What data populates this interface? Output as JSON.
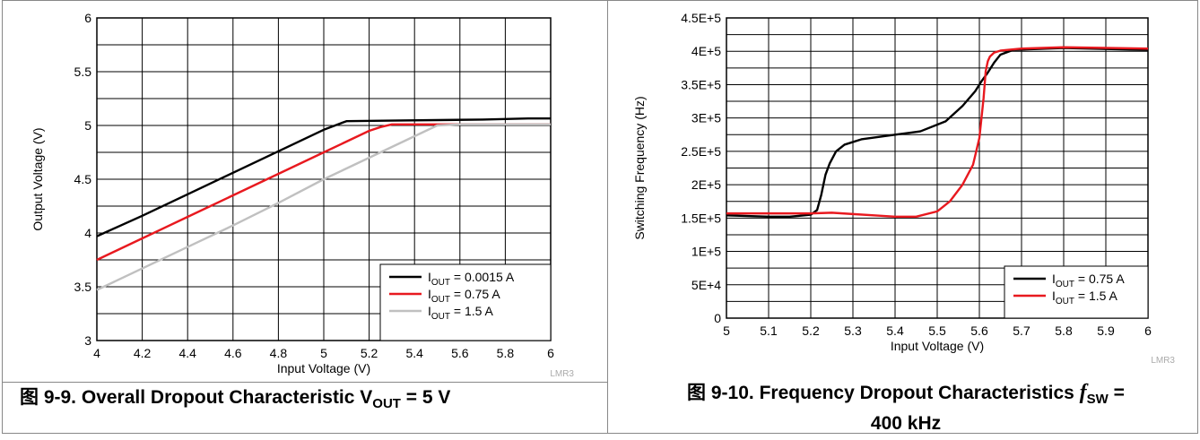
{
  "charts_meta": {
    "left_caption": {
      "prefix": "图 9-9. Overall Dropout Characteristic V",
      "sub": "OUT",
      "suffix": " = 5 V"
    },
    "right_caption": {
      "prefix": "图 9-10. Frequency Dropout Characteristics ",
      "italic": "f",
      "sub": "SW",
      "suffix": " =",
      "line2": "400 kHz"
    },
    "watermark": "LMR3"
  },
  "chart_data": [
    {
      "type": "line",
      "xlabel": "Input Voltage (V)",
      "ylabel": "Output Voltage (V)",
      "xlim": [
        4,
        6
      ],
      "ylim": [
        3,
        6
      ],
      "xticks": [
        "4",
        "4.2",
        "4.4",
        "4.6",
        "4.8",
        "5",
        "5.2",
        "5.4",
        "5.6",
        "5.8",
        "6"
      ],
      "yticks": [
        "3",
        "3.5",
        "4",
        "4.5",
        "5",
        "5.5",
        "6"
      ],
      "grid": true,
      "legend_position": "bottom-right",
      "series": [
        {
          "name": "I_OUT = 0.0015 A",
          "label_main": "I",
          "label_sub": "OUT",
          "label_rest": " = 0.0015 A",
          "color": "#000000",
          "x": [
            4.0,
            4.2,
            4.4,
            4.6,
            4.8,
            5.0,
            5.05,
            5.1,
            5.3,
            5.5,
            5.7,
            5.9,
            6.0
          ],
          "y": [
            3.97,
            4.16,
            4.36,
            4.56,
            4.76,
            4.96,
            5.0,
            5.04,
            5.045,
            5.05,
            5.055,
            5.065,
            5.065
          ]
        },
        {
          "name": "I_OUT = 0.75 A",
          "label_main": "I",
          "label_sub": "OUT",
          "label_rest": " = 0.75 A",
          "color": "#e8191f",
          "x": [
            4.0,
            4.2,
            4.4,
            4.6,
            4.8,
            5.0,
            5.2,
            5.25,
            5.3,
            5.5,
            5.7,
            6.0
          ],
          "y": [
            3.75,
            3.95,
            4.15,
            4.35,
            4.55,
            4.75,
            4.95,
            4.985,
            5.01,
            5.01,
            5.01,
            5.01
          ]
        },
        {
          "name": "I_OUT = 1.5 A",
          "label_main": "I",
          "label_sub": "OUT",
          "label_rest": " = 1.5 A",
          "color": "#c0c0c0",
          "x": [
            4.0,
            4.2,
            4.4,
            4.6,
            4.8,
            5.0,
            5.2,
            5.4,
            5.5,
            5.6,
            6.0
          ],
          "y": [
            3.47,
            3.67,
            3.87,
            4.07,
            4.28,
            4.5,
            4.7,
            4.9,
            5.0,
            5.01,
            5.01
          ]
        }
      ]
    },
    {
      "type": "line",
      "xlabel": "Input Voltage (V)",
      "ylabel": "Switching Frequency (Hz)",
      "xlim": [
        5,
        6
      ],
      "ylim": [
        0,
        450000
      ],
      "xticks": [
        "5",
        "5.1",
        "5.2",
        "5.3",
        "5.4",
        "5.5",
        "5.6",
        "5.7",
        "5.8",
        "5.9",
        "6"
      ],
      "yticks": [
        "0",
        "5E+4",
        "1E+5",
        "1.5E+5",
        "2E+5",
        "2.5E+5",
        "3E+5",
        "3.5E+5",
        "4E+5",
        "4.5E+5"
      ],
      "grid": true,
      "legend_position": "bottom-right",
      "series": [
        {
          "name": "I_OUT = 0.75 A",
          "label_main": "I",
          "label_sub": "OUT",
          "label_rest": " = 0.75 A",
          "color": "#000000",
          "x": [
            5.0,
            5.05,
            5.1,
            5.15,
            5.2,
            5.215,
            5.225,
            5.235,
            5.245,
            5.26,
            5.28,
            5.32,
            5.4,
            5.46,
            5.52,
            5.56,
            5.59,
            5.605,
            5.62,
            5.635,
            5.65,
            5.68,
            5.8,
            6.0
          ],
          "y": [
            154000,
            153000,
            152000,
            152000,
            155000,
            162000,
            185000,
            215000,
            232000,
            250000,
            260000,
            268000,
            275000,
            280000,
            295000,
            318000,
            340000,
            355000,
            368000,
            383000,
            395000,
            402000,
            405000,
            402000
          ]
        },
        {
          "name": "I_OUT = 1.5 A",
          "label_main": "I",
          "label_sub": "OUT",
          "label_rest": " = 1.5 A",
          "color": "#e8191f",
          "x": [
            5.0,
            5.1,
            5.2,
            5.25,
            5.3,
            5.35,
            5.4,
            5.45,
            5.5,
            5.53,
            5.56,
            5.585,
            5.6,
            5.61,
            5.615,
            5.62,
            5.625,
            5.635,
            5.65,
            5.7,
            5.8,
            6.0
          ],
          "y": [
            157000,
            157000,
            157000,
            158000,
            156000,
            154000,
            152000,
            152000,
            160000,
            175000,
            200000,
            230000,
            270000,
            330000,
            370000,
            385000,
            392000,
            398000,
            401000,
            404000,
            406000,
            404000
          ]
        }
      ]
    }
  ]
}
